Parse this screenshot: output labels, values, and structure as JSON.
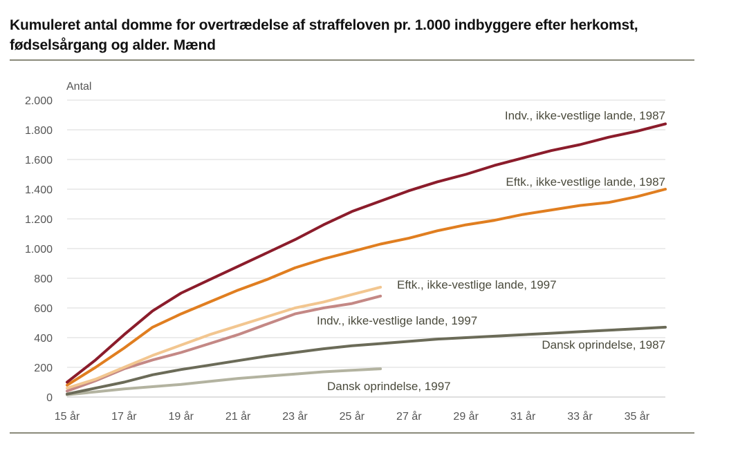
{
  "title_line1": "Kumuleret antal domme for overtrædelse af straffeloven pr. 1.000 indbyggere efter herkomst,",
  "title_line2": "fødselsårgang og alder. Mænd",
  "chart_data": {
    "type": "line",
    "title": "Kumuleret antal domme for overtrædelse af straffeloven pr. 1.000 indbyggere efter herkomst, fødselsårgang og alder. Mænd",
    "ylabel": "Antal",
    "xlabel": "",
    "ylim": [
      0,
      2000
    ],
    "y_ticks": [
      0,
      200,
      400,
      600,
      800,
      1000,
      1200,
      1400,
      1600,
      1800,
      2000
    ],
    "y_tick_labels": [
      "0",
      "200",
      "400",
      "600",
      "800",
      "1.000",
      "1.200",
      "1.400",
      "1.600",
      "1.800",
      "2.000"
    ],
    "x_ticks": [
      15,
      17,
      19,
      21,
      23,
      25,
      27,
      29,
      31,
      33,
      35
    ],
    "x_tick_labels": [
      "15 år",
      "17 år",
      "19 år",
      "21 år",
      "23 år",
      "25 år",
      "27 år",
      "29 år",
      "31 år",
      "33 år",
      "35 år"
    ],
    "xlim": [
      15,
      36
    ],
    "grid": true,
    "series": [
      {
        "name": "Indv., ikke-vestlige lande, 1987",
        "color": "#8b1c2b",
        "x": [
          15,
          16,
          17,
          18,
          19,
          20,
          21,
          22,
          23,
          24,
          25,
          26,
          27,
          28,
          29,
          30,
          31,
          32,
          33,
          34,
          35,
          36
        ],
        "values": [
          100,
          250,
          420,
          580,
          700,
          790,
          880,
          970,
          1060,
          1160,
          1250,
          1320,
          1390,
          1450,
          1500,
          1560,
          1610,
          1660,
          1700,
          1750,
          1790,
          1840
        ]
      },
      {
        "name": "Eftk., ikke-vestlige lande, 1987",
        "color": "#e07e20",
        "x": [
          15,
          16,
          17,
          18,
          19,
          20,
          21,
          22,
          23,
          24,
          25,
          26,
          27,
          28,
          29,
          30,
          31,
          32,
          33,
          34,
          35,
          36
        ],
        "values": [
          80,
          200,
          330,
          470,
          560,
          640,
          720,
          790,
          870,
          930,
          980,
          1030,
          1070,
          1120,
          1160,
          1190,
          1230,
          1260,
          1290,
          1310,
          1350,
          1400
        ]
      },
      {
        "name": "Eftk., ikke-vestlige lande, 1997",
        "color": "#f2c690",
        "x": [
          15,
          16,
          17,
          18,
          19,
          20,
          21,
          22,
          23,
          24,
          25,
          26
        ],
        "values": [
          60,
          120,
          200,
          280,
          350,
          420,
          480,
          540,
          600,
          640,
          690,
          740
        ]
      },
      {
        "name": "Indv., ikke-vestlige lande, 1997",
        "color": "#c48885",
        "x": [
          15,
          16,
          17,
          18,
          19,
          20,
          21,
          22,
          23,
          24,
          25,
          26
        ],
        "values": [
          40,
          110,
          190,
          250,
          300,
          360,
          420,
          490,
          560,
          600,
          630,
          680
        ]
      },
      {
        "name": "Dansk oprindelse, 1987",
        "color": "#6b6b58",
        "x": [
          15,
          16,
          17,
          18,
          19,
          20,
          21,
          22,
          23,
          24,
          25,
          26,
          27,
          28,
          29,
          30,
          31,
          32,
          33,
          34,
          35,
          36
        ],
        "values": [
          20,
          60,
          100,
          150,
          185,
          215,
          245,
          275,
          300,
          325,
          345,
          360,
          375,
          390,
          400,
          410,
          420,
          430,
          440,
          450,
          460,
          470
        ]
      },
      {
        "name": "Dansk oprindelse, 1997",
        "color": "#b3b3a0",
        "x": [
          15,
          16,
          17,
          18,
          19,
          20,
          21,
          22,
          23,
          24,
          25,
          26
        ],
        "values": [
          15,
          35,
          55,
          70,
          85,
          105,
          125,
          140,
          155,
          170,
          180,
          190
        ]
      }
    ]
  }
}
